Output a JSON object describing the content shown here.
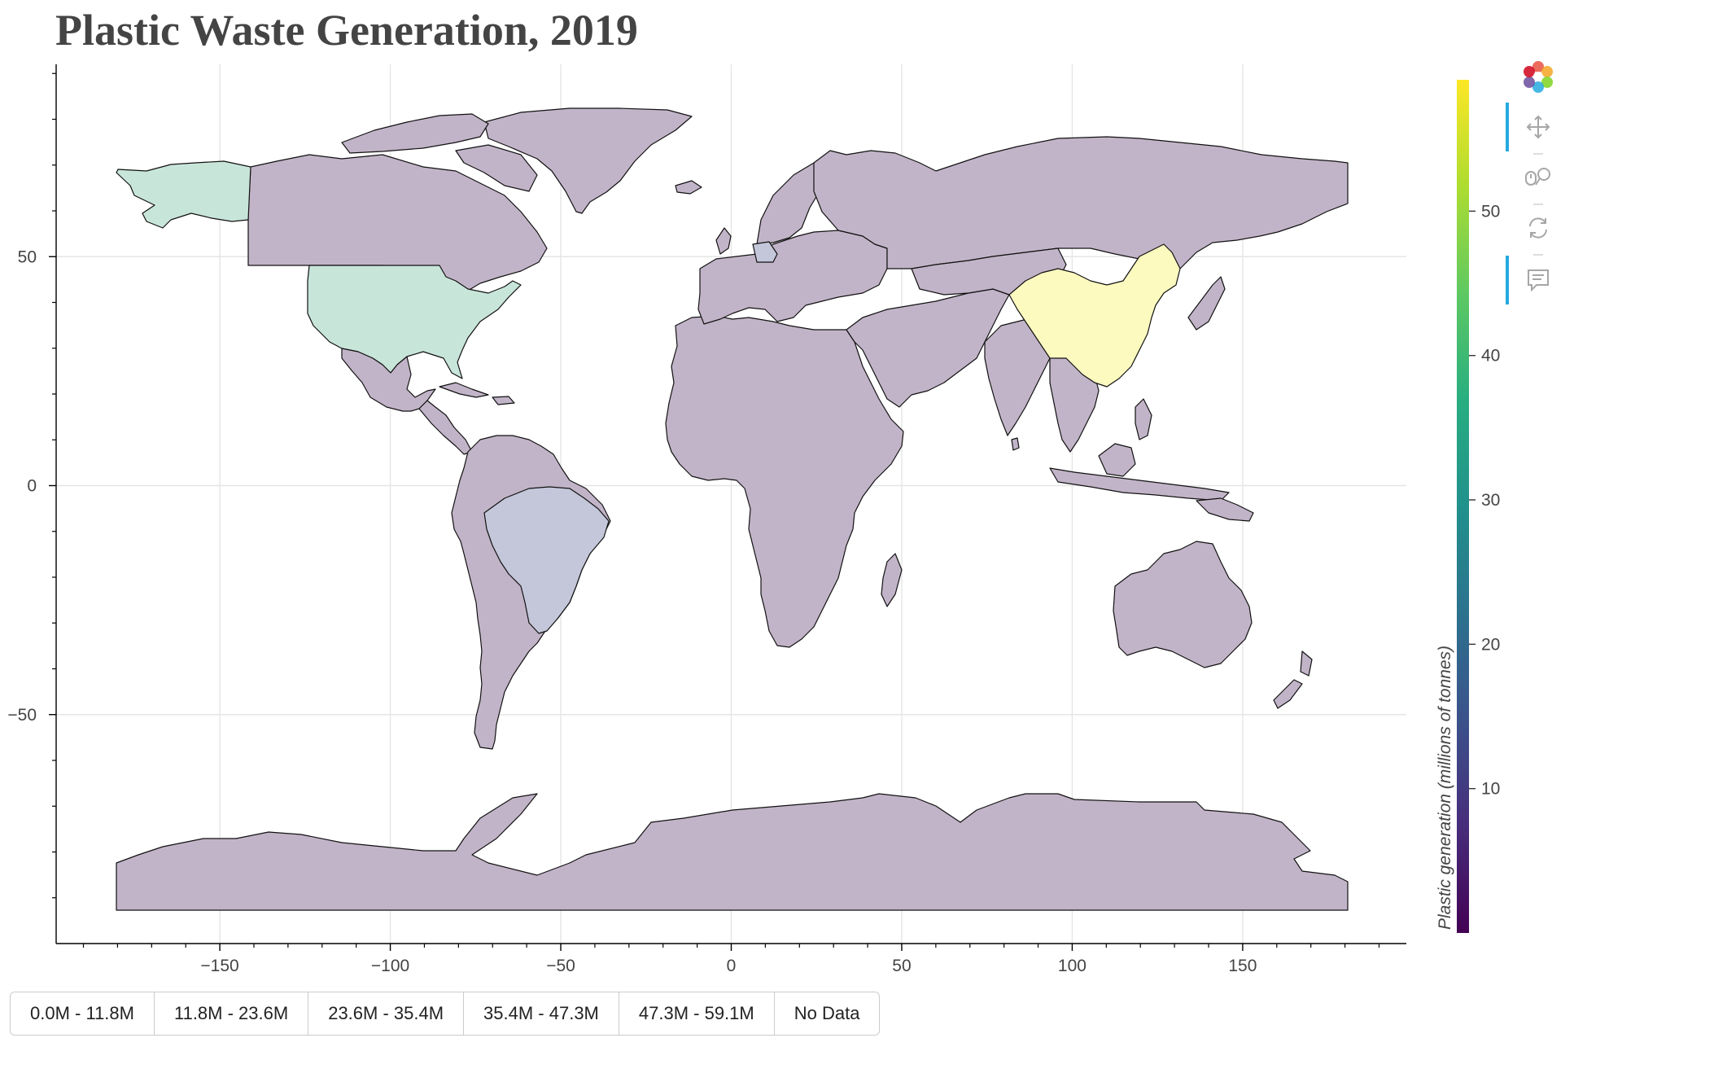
{
  "title": "Plastic Waste Generation, 2019",
  "map": {
    "x_ticks": [
      "−150",
      "−100",
      "−50",
      "0",
      "50",
      "100",
      "150"
    ],
    "y_ticks": [
      "50",
      "0",
      "−50"
    ],
    "x_range": [
      -198,
      198
    ],
    "y_range": [
      -100,
      92
    ],
    "land_color": "#c2b4c8",
    "highlight_colors": {
      "China": "#fdfabf",
      "USA": "#c8e5da",
      "Alaska": "#c8e5da",
      "Brazil": "#c4c7da",
      "Germany": "#c4c7da"
    }
  },
  "colorbar": {
    "label": "Plastic generation (millions of tonnes)",
    "ticks": [
      "50",
      "40",
      "30",
      "20",
      "10"
    ],
    "range": [
      0,
      59.1
    ],
    "palette": [
      "#440154",
      "#472d7b",
      "#3b528b",
      "#2c728e",
      "#21918c",
      "#28ae80",
      "#5ec962",
      "#addc30",
      "#fde725"
    ]
  },
  "toolbar": {
    "tools": [
      "pan-tool",
      "wheel-zoom-tool",
      "reset-tool",
      "hover-tool"
    ]
  },
  "legend_buttons": [
    "0.0M - 11.8M",
    "11.8M - 23.6M",
    "23.6M - 35.4M",
    "35.4M - 47.3M",
    "47.3M - 59.1M",
    "No Data"
  ]
}
